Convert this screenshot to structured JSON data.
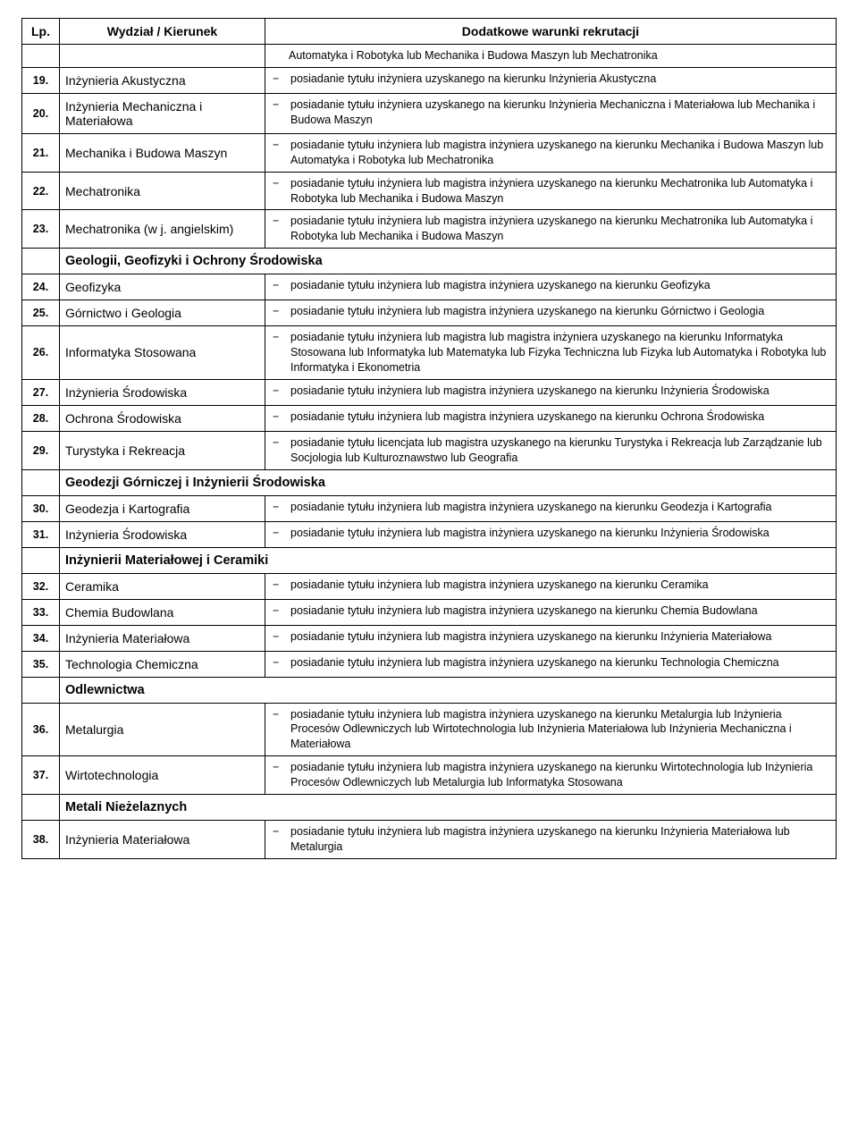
{
  "headers": {
    "lp": "Lp.",
    "kierunek": "Wydział / Kierunek",
    "warunki": "Dodatkowe warunki rekrutacji"
  },
  "carryover": {
    "text": "Automatyka i Robotyka lub Mechanika i Budowa Maszyn lub Mechatronika"
  },
  "rows": [
    {
      "type": "row",
      "lp": "19.",
      "kierunek": "Inżynieria Akustyczna",
      "warunki": "posiadanie tytułu inżyniera uzyskanego na kierunku Inżynieria Akustyczna"
    },
    {
      "type": "row",
      "lp": "20.",
      "kierunek": "Inżynieria Mechaniczna i Materiałowa",
      "warunki": "posiadanie tytułu inżyniera uzyskanego na kierunku Inżynieria Mechaniczna i Materiałowa lub Mechanika i Budowa Maszyn"
    },
    {
      "type": "row",
      "lp": "21.",
      "kierunek": "Mechanika i Budowa Maszyn",
      "warunki": "posiadanie tytułu inżyniera lub magistra inżyniera uzyskanego na kierunku Mechanika i Budowa Maszyn lub Automatyka i Robotyka lub Mechatronika"
    },
    {
      "type": "row",
      "lp": "22.",
      "kierunek": "Mechatronika",
      "warunki": "posiadanie tytułu inżyniera lub magistra inżyniera uzyskanego na kierunku Mechatronika lub Automatyka i Robotyka lub Mechanika i Budowa Maszyn"
    },
    {
      "type": "row",
      "lp": "23.",
      "kierunek": "Mechatronika (w j. angielskim)",
      "warunki": "posiadanie tytułu inżyniera lub magistra inżyniera uzyskanego na kierunku Mechatronika lub Automatyka i Robotyka lub Mechanika i Budowa Maszyn"
    },
    {
      "type": "section",
      "title": "Geologii, Geofizyki i Ochrony Środowiska"
    },
    {
      "type": "row",
      "lp": "24.",
      "kierunek": "Geofizyka",
      "warunki": "posiadanie tytułu inżyniera lub magistra inżyniera uzyskanego na kierunku Geofizyka"
    },
    {
      "type": "row",
      "lp": "25.",
      "kierunek": "Górnictwo i Geologia",
      "warunki": "posiadanie tytułu inżyniera lub magistra inżyniera uzyskanego na kierunku Górnictwo i Geologia"
    },
    {
      "type": "row",
      "lp": "26.",
      "kierunek": "Informatyka Stosowana",
      "warunki": "posiadanie tytułu inżyniera lub magistra lub magistra inżyniera uzyskanego na kierunku Informatyka Stosowana lub Informatyka lub Matematyka lub Fizyka Techniczna lub Fizyka lub Automatyka i Robotyka lub Informatyka i Ekonometria"
    },
    {
      "type": "row",
      "lp": "27.",
      "kierunek": "Inżynieria Środowiska",
      "warunki": "posiadanie tytułu inżyniera lub magistra inżyniera uzyskanego na kierunku Inżynieria Środowiska"
    },
    {
      "type": "row",
      "lp": "28.",
      "kierunek": "Ochrona Środowiska",
      "warunki": "posiadanie tytułu inżyniera lub magistra inżyniera uzyskanego na kierunku Ochrona Środowiska"
    },
    {
      "type": "row",
      "lp": "29.",
      "kierunek": "Turystyka i Rekreacja",
      "warunki": "posiadanie tytułu licencjata lub magistra uzyskanego na kierunku Turystyka i Rekreacja lub Zarządzanie lub Socjologia lub Kulturoznawstwo lub Geografia"
    },
    {
      "type": "section",
      "title": "Geodezji Górniczej i Inżynierii Środowiska"
    },
    {
      "type": "row",
      "lp": "30.",
      "kierunek": "Geodezja i Kartografia",
      "warunki": "posiadanie tytułu inżyniera lub magistra inżyniera uzyskanego na kierunku Geodezja i Kartografia"
    },
    {
      "type": "row",
      "lp": "31.",
      "kierunek": "Inżynieria Środowiska",
      "warunki": "posiadanie tytułu inżyniera lub magistra inżyniera uzyskanego na kierunku Inżynieria Środowiska"
    },
    {
      "type": "section",
      "title": "Inżynierii Materiałowej i Ceramiki"
    },
    {
      "type": "row",
      "lp": "32.",
      "kierunek": "Ceramika",
      "warunki": "posiadanie tytułu inżyniera lub magistra inżyniera uzyskanego na kierunku Ceramika"
    },
    {
      "type": "row",
      "lp": "33.",
      "kierunek": "Chemia Budowlana",
      "warunki": "posiadanie tytułu inżyniera lub magistra inżyniera uzyskanego na kierunku Chemia Budowlana"
    },
    {
      "type": "row",
      "lp": "34.",
      "kierunek": "Inżynieria Materiałowa",
      "warunki": "posiadanie tytułu inżyniera lub magistra inżyniera uzyskanego na kierunku Inżynieria Materiałowa"
    },
    {
      "type": "row",
      "lp": "35.",
      "kierunek": "Technologia Chemiczna",
      "warunki": "posiadanie tytułu inżyniera lub magistra inżyniera uzyskanego na kierunku Technologia Chemiczna"
    },
    {
      "type": "section",
      "title": "Odlewnictwa"
    },
    {
      "type": "row",
      "lp": "36.",
      "kierunek": "Metalurgia",
      "warunki": "posiadanie tytułu inżyniera lub magistra inżyniera uzyskanego na kierunku Metalurgia lub Inżynieria Procesów Odlewniczych lub Wirtotechnologia lub Inżynieria Materiałowa lub Inżynieria Mechaniczna i Materiałowa"
    },
    {
      "type": "row",
      "lp": "37.",
      "kierunek": "Wirtotechnologia",
      "warunki": "posiadanie tytułu inżyniera lub magistra inżyniera uzyskanego na kierunku Wirtotechnologia lub Inżynieria Procesów Odlewniczych lub Metalurgia lub Informatyka Stosowana"
    },
    {
      "type": "section",
      "title": "Metali Nieżelaznych"
    },
    {
      "type": "row",
      "lp": "38.",
      "kierunek": "Inżynieria Materiałowa",
      "warunki": "posiadanie tytułu inżyniera lub magistra inżyniera uzyskanego na kierunku Inżynieria Materiałowa lub Metalurgia"
    }
  ],
  "dash": "−"
}
